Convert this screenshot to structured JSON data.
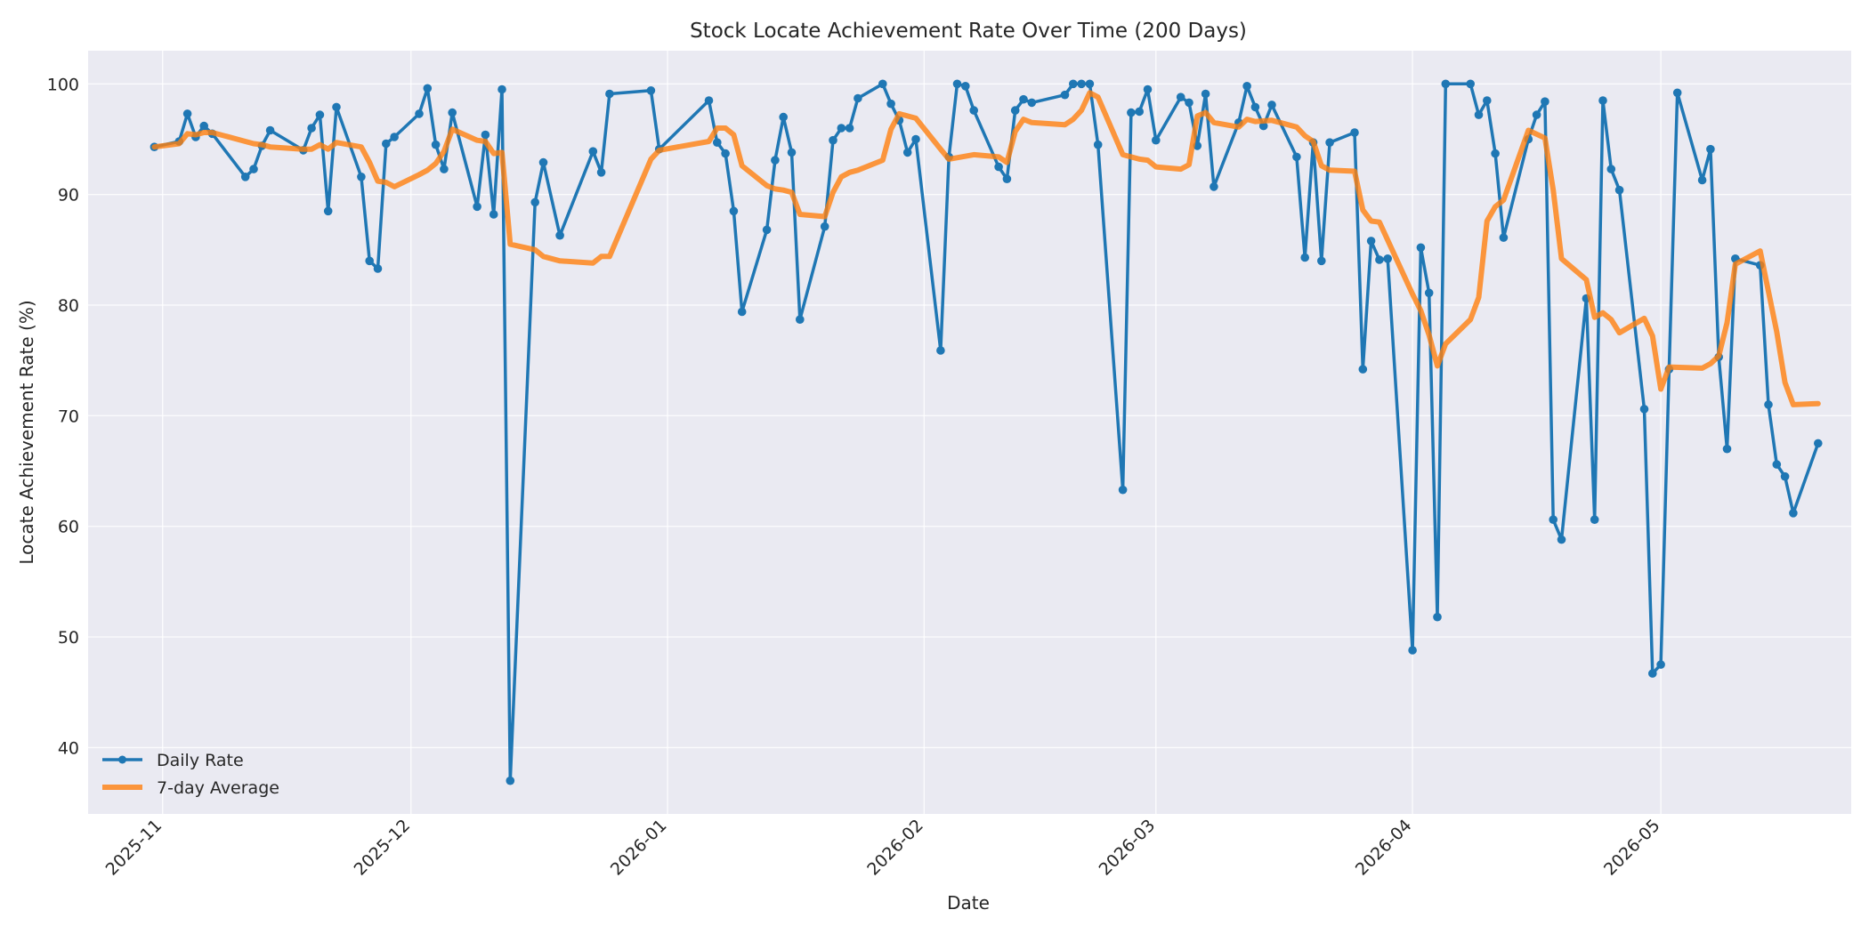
{
  "chart_data": {
    "type": "line",
    "title": "Stock Locate Achievement Rate Over Time (200 Days)",
    "xlabel": "Date",
    "ylabel": "Locate Achievement Rate (%)",
    "x_ticks": [
      "2025-11",
      "2025-12",
      "2026-01",
      "2026-02",
      "2026-03",
      "2026-04",
      "2026-05"
    ],
    "y_ticks": [
      40,
      50,
      60,
      70,
      80,
      90,
      100
    ],
    "x_range": [
      "2025-10-23",
      "2026-05-24"
    ],
    "ylim": [
      34,
      103
    ],
    "grid": true,
    "legend_position": "bottom-left",
    "colors": {
      "plot_background": "#eaeaf2",
      "daily": "#1f77b4",
      "average": "#ff7f0e"
    },
    "series": [
      {
        "name": "Daily Rate",
        "style": "line-with-markers",
        "color": "#1f77b4",
        "points": [
          [
            "2025-10-31",
            94.3
          ],
          [
            "2025-11-03",
            94.8
          ],
          [
            "2025-11-04",
            97.3
          ],
          [
            "2025-11-05",
            95.2
          ],
          [
            "2025-11-06",
            96.2
          ],
          [
            "2025-11-07",
            95.5
          ],
          [
            "2025-11-11",
            91.6
          ],
          [
            "2025-11-12",
            92.3
          ],
          [
            "2025-11-13",
            94.4
          ],
          [
            "2025-11-14",
            95.8
          ],
          [
            "2025-11-18",
            94.0
          ],
          [
            "2025-11-19",
            96.0
          ],
          [
            "2025-11-20",
            97.2
          ],
          [
            "2025-11-21",
            88.5
          ],
          [
            "2025-11-22",
            97.9
          ],
          [
            "2025-11-25",
            91.6
          ],
          [
            "2025-11-26",
            84.0
          ],
          [
            "2025-11-27",
            83.3
          ],
          [
            "2025-11-28",
            94.6
          ],
          [
            "2025-11-29",
            95.2
          ],
          [
            "2025-12-02",
            97.3
          ],
          [
            "2025-12-03",
            99.6
          ],
          [
            "2025-12-04",
            94.5
          ],
          [
            "2025-12-05",
            92.3
          ],
          [
            "2025-12-06",
            97.4
          ],
          [
            "2025-12-09",
            88.9
          ],
          [
            "2025-12-10",
            95.4
          ],
          [
            "2025-12-11",
            88.2
          ],
          [
            "2025-12-12",
            99.5
          ],
          [
            "2025-12-13",
            37.0
          ],
          [
            "2025-12-16",
            89.3
          ],
          [
            "2025-12-17",
            92.9
          ],
          [
            "2025-12-19",
            86.3
          ],
          [
            "2025-12-23",
            93.9
          ],
          [
            "2025-12-24",
            92.0
          ],
          [
            "2025-12-25",
            99.1
          ],
          [
            "2025-12-30",
            99.4
          ],
          [
            "2025-12-31",
            94.1
          ],
          [
            "2026-01-06",
            98.5
          ],
          [
            "2026-01-07",
            94.7
          ],
          [
            "2026-01-08",
            93.7
          ],
          [
            "2026-01-09",
            88.5
          ],
          [
            "2026-01-10",
            79.4
          ],
          [
            "2026-01-13",
            86.8
          ],
          [
            "2026-01-14",
            93.1
          ],
          [
            "2026-01-15",
            97.0
          ],
          [
            "2026-01-16",
            93.8
          ],
          [
            "2026-01-17",
            78.7
          ],
          [
            "2026-01-20",
            87.1
          ],
          [
            "2026-01-21",
            94.9
          ],
          [
            "2026-01-22",
            96.0
          ],
          [
            "2026-01-23",
            96.0
          ],
          [
            "2026-01-24",
            98.7
          ],
          [
            "2026-01-27",
            100.0
          ],
          [
            "2026-01-28",
            98.2
          ],
          [
            "2026-01-29",
            96.7
          ],
          [
            "2026-01-30",
            93.8
          ],
          [
            "2026-01-31",
            95.0
          ],
          [
            "2026-02-03",
            75.9
          ],
          [
            "2026-02-04",
            93.4
          ],
          [
            "2026-02-05",
            100.0
          ],
          [
            "2026-02-06",
            99.8
          ],
          [
            "2026-02-07",
            97.6
          ],
          [
            "2026-02-10",
            92.5
          ],
          [
            "2026-02-11",
            91.4
          ],
          [
            "2026-02-12",
            97.6
          ],
          [
            "2026-02-13",
            98.6
          ],
          [
            "2026-02-14",
            98.3
          ],
          [
            "2026-02-18",
            99.0
          ],
          [
            "2026-02-19",
            100.0
          ],
          [
            "2026-02-20",
            100.0
          ],
          [
            "2026-02-21",
            100.0
          ],
          [
            "2026-02-22",
            94.5
          ],
          [
            "2026-02-25",
            63.3
          ],
          [
            "2026-02-26",
            97.4
          ],
          [
            "2026-02-27",
            97.5
          ],
          [
            "2026-02-28",
            99.5
          ],
          [
            "2026-03-01",
            94.9
          ],
          [
            "2026-03-04",
            98.8
          ],
          [
            "2026-03-05",
            98.3
          ],
          [
            "2026-03-06",
            94.4
          ],
          [
            "2026-03-07",
            99.1
          ],
          [
            "2026-03-08",
            90.7
          ],
          [
            "2026-03-11",
            96.5
          ],
          [
            "2026-03-12",
            99.8
          ],
          [
            "2026-03-13",
            97.9
          ],
          [
            "2026-03-14",
            96.2
          ],
          [
            "2026-03-15",
            98.1
          ],
          [
            "2026-03-18",
            93.4
          ],
          [
            "2026-03-19",
            84.3
          ],
          [
            "2026-03-20",
            94.7
          ],
          [
            "2026-03-21",
            84.0
          ],
          [
            "2026-03-22",
            94.7
          ],
          [
            "2026-03-25",
            95.6
          ],
          [
            "2026-03-26",
            74.2
          ],
          [
            "2026-03-27",
            85.8
          ],
          [
            "2026-03-28",
            84.1
          ],
          [
            "2026-03-29",
            84.2
          ],
          [
            "2026-04-01",
            48.8
          ],
          [
            "2026-04-02",
            85.2
          ],
          [
            "2026-04-03",
            81.1
          ],
          [
            "2026-04-04",
            51.8
          ],
          [
            "2026-04-05",
            100.0
          ],
          [
            "2026-04-08",
            100.0
          ],
          [
            "2026-04-09",
            97.2
          ],
          [
            "2026-04-10",
            98.5
          ],
          [
            "2026-04-11",
            93.7
          ],
          [
            "2026-04-12",
            86.1
          ],
          [
            "2026-04-15",
            95.0
          ],
          [
            "2026-04-16",
            97.2
          ],
          [
            "2026-04-17",
            98.4
          ],
          [
            "2026-04-18",
            60.6
          ],
          [
            "2026-04-19",
            58.8
          ],
          [
            "2026-04-22",
            80.6
          ],
          [
            "2026-04-23",
            60.6
          ],
          [
            "2026-04-24",
            98.5
          ],
          [
            "2026-04-25",
            92.3
          ],
          [
            "2026-04-26",
            90.4
          ],
          [
            "2026-04-29",
            70.6
          ],
          [
            "2026-04-30",
            46.7
          ],
          [
            "2026-05-01",
            47.5
          ],
          [
            "2026-05-02",
            74.2
          ],
          [
            "2026-05-03",
            99.2
          ],
          [
            "2026-05-06",
            91.3
          ],
          [
            "2026-05-07",
            94.1
          ],
          [
            "2026-05-08",
            75.3
          ],
          [
            "2026-05-09",
            67.0
          ],
          [
            "2026-05-10",
            84.2
          ],
          [
            "2026-05-13",
            83.6
          ],
          [
            "2026-05-14",
            71.0
          ],
          [
            "2026-05-15",
            65.6
          ],
          [
            "2026-05-16",
            64.5
          ],
          [
            "2026-05-17",
            61.2
          ],
          [
            "2026-05-20",
            67.5
          ]
        ]
      },
      {
        "name": "7-day Average",
        "style": "thick-line",
        "color": "#ff7f0e",
        "points": [
          [
            "2025-10-31",
            94.3
          ],
          [
            "2025-11-03",
            94.6
          ],
          [
            "2025-11-04",
            95.5
          ],
          [
            "2025-11-05",
            95.4
          ],
          [
            "2025-11-06",
            95.6
          ],
          [
            "2025-11-07",
            95.6
          ],
          [
            "2025-11-11",
            94.8
          ],
          [
            "2025-11-12",
            94.6
          ],
          [
            "2025-11-13",
            94.5
          ],
          [
            "2025-11-14",
            94.3
          ],
          [
            "2025-11-18",
            94.1
          ],
          [
            "2025-11-19",
            94.1
          ],
          [
            "2025-11-20",
            94.5
          ],
          [
            "2025-11-21",
            94.1
          ],
          [
            "2025-11-22",
            94.7
          ],
          [
            "2025-11-25",
            94.3
          ],
          [
            "2025-11-26",
            92.9
          ],
          [
            "2025-11-27",
            91.2
          ],
          [
            "2025-11-28",
            91.1
          ],
          [
            "2025-11-29",
            90.7
          ],
          [
            "2025-12-02",
            91.8
          ],
          [
            "2025-12-03",
            92.2
          ],
          [
            "2025-12-04",
            92.8
          ],
          [
            "2025-12-05",
            93.9
          ],
          [
            "2025-12-06",
            95.9
          ],
          [
            "2025-12-09",
            94.9
          ],
          [
            "2025-12-10",
            94.8
          ],
          [
            "2025-12-11",
            93.7
          ],
          [
            "2025-12-12",
            93.8
          ],
          [
            "2025-12-13",
            85.5
          ],
          [
            "2025-12-16",
            85.0
          ],
          [
            "2025-12-17",
            84.4
          ],
          [
            "2025-12-19",
            84.0
          ],
          [
            "2025-12-23",
            83.8
          ],
          [
            "2025-12-24",
            84.4
          ],
          [
            "2025-12-25",
            84.4
          ],
          [
            "2025-12-30",
            93.2
          ],
          [
            "2025-12-31",
            94.0
          ],
          [
            "2026-01-06",
            94.8
          ],
          [
            "2026-01-07",
            96.0
          ],
          [
            "2026-01-08",
            96.0
          ],
          [
            "2026-01-09",
            95.4
          ],
          [
            "2026-01-10",
            92.6
          ],
          [
            "2026-01-13",
            90.8
          ],
          [
            "2026-01-14",
            90.5
          ],
          [
            "2026-01-15",
            90.4
          ],
          [
            "2026-01-16",
            90.2
          ],
          [
            "2026-01-17",
            88.2
          ],
          [
            "2026-01-20",
            88.0
          ],
          [
            "2026-01-21",
            90.2
          ],
          [
            "2026-01-22",
            91.6
          ],
          [
            "2026-01-23",
            92.0
          ],
          [
            "2026-01-24",
            92.2
          ],
          [
            "2026-01-27",
            93.1
          ],
          [
            "2026-01-28",
            95.9
          ],
          [
            "2026-01-29",
            97.3
          ],
          [
            "2026-01-31",
            96.9
          ],
          [
            "2026-02-03",
            94.1
          ],
          [
            "2026-02-04",
            93.2
          ],
          [
            "2026-02-07",
            93.6
          ],
          [
            "2026-02-10",
            93.4
          ],
          [
            "2026-02-11",
            92.9
          ],
          [
            "2026-02-12",
            95.7
          ],
          [
            "2026-02-13",
            96.8
          ],
          [
            "2026-02-14",
            96.5
          ],
          [
            "2026-02-18",
            96.3
          ],
          [
            "2026-02-19",
            96.8
          ],
          [
            "2026-02-20",
            97.6
          ],
          [
            "2026-02-21",
            99.2
          ],
          [
            "2026-02-22",
            98.8
          ],
          [
            "2026-02-25",
            93.6
          ],
          [
            "2026-02-27",
            93.2
          ],
          [
            "2026-02-28",
            93.1
          ],
          [
            "2026-03-01",
            92.5
          ],
          [
            "2026-03-04",
            92.3
          ],
          [
            "2026-03-05",
            92.7
          ],
          [
            "2026-03-06",
            97.1
          ],
          [
            "2026-03-07",
            97.4
          ],
          [
            "2026-03-08",
            96.5
          ],
          [
            "2026-03-11",
            96.1
          ],
          [
            "2026-03-12",
            96.8
          ],
          [
            "2026-03-13",
            96.6
          ],
          [
            "2026-03-15",
            96.7
          ],
          [
            "2026-03-18",
            96.1
          ],
          [
            "2026-03-19",
            95.3
          ],
          [
            "2026-03-20",
            94.8
          ],
          [
            "2026-03-21",
            92.6
          ],
          [
            "2026-03-22",
            92.2
          ],
          [
            "2026-03-25",
            92.1
          ],
          [
            "2026-03-26",
            88.6
          ],
          [
            "2026-03-27",
            87.6
          ],
          [
            "2026-03-28",
            87.5
          ],
          [
            "2026-04-01",
            81.0
          ],
          [
            "2026-04-02",
            79.5
          ],
          [
            "2026-04-03",
            77.3
          ],
          [
            "2026-04-04",
            74.5
          ],
          [
            "2026-04-05",
            76.5
          ],
          [
            "2026-04-08",
            78.7
          ],
          [
            "2026-04-09",
            80.7
          ],
          [
            "2026-04-10",
            87.6
          ],
          [
            "2026-04-11",
            88.9
          ],
          [
            "2026-04-12",
            89.5
          ],
          [
            "2026-04-15",
            95.8
          ],
          [
            "2026-04-17",
            95.1
          ],
          [
            "2026-04-18",
            90.4
          ],
          [
            "2026-04-19",
            84.2
          ],
          [
            "2026-04-22",
            82.3
          ],
          [
            "2026-04-23",
            78.9
          ],
          [
            "2026-04-24",
            79.3
          ],
          [
            "2026-04-25",
            78.7
          ],
          [
            "2026-04-26",
            77.5
          ],
          [
            "2026-04-29",
            78.8
          ],
          [
            "2026-04-30",
            77.2
          ],
          [
            "2026-05-01",
            72.4
          ],
          [
            "2026-05-02",
            74.4
          ],
          [
            "2026-05-06",
            74.3
          ],
          [
            "2026-05-07",
            74.7
          ],
          [
            "2026-05-08",
            75.4
          ],
          [
            "2026-05-09",
            78.4
          ],
          [
            "2026-05-10",
            83.7
          ],
          [
            "2026-05-13",
            84.9
          ],
          [
            "2026-05-15",
            77.6
          ],
          [
            "2026-05-16",
            73.0
          ],
          [
            "2026-05-17",
            71.0
          ],
          [
            "2026-05-20",
            71.1
          ]
        ]
      }
    ]
  }
}
